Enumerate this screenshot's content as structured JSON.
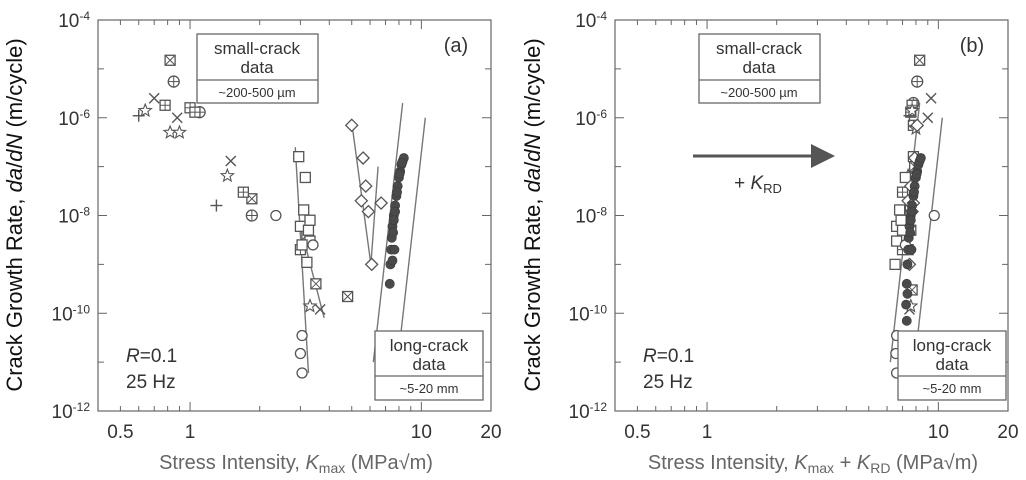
{
  "chart_data": [
    {
      "type": "scatter",
      "panel_label": "(a)",
      "xlabel_text": "Stress Intensity, ",
      "xlabel_K": "K",
      "xlabel_K_sub": "max",
      "xlabel_units": " (MPa√m)",
      "ylabel_text": "Crack Growth Rate, ",
      "ylabel_italic": "da",
      "ylabel_slash": "/",
      "ylabel_italic2": "dN",
      "ylabel_units": " (m/cycle)",
      "x_scale": "log",
      "y_scale": "log",
      "xlim": [
        0.4,
        20
      ],
      "ylim": [
        1e-12,
        0.0001
      ],
      "x_tick_labels": [
        {
          "v": 0.5,
          "text": "0.5"
        },
        {
          "v": 1,
          "text": "1"
        },
        {
          "v": 10,
          "text": "10"
        },
        {
          "v": 20,
          "text": "20"
        }
      ],
      "y_tick_labels": [
        {
          "v": 0.0001,
          "base": "10",
          "exp": "-4"
        },
        {
          "v": 1e-06,
          "base": "10",
          "exp": "-6"
        },
        {
          "v": 1e-08,
          "base": "10",
          "exp": "-8"
        },
        {
          "v": 1e-10,
          "base": "10",
          "exp": "-10"
        },
        {
          "v": 1e-12,
          "base": "10",
          "exp": "-12"
        }
      ],
      "small_crack_box": {
        "line1": "small-crack",
        "line2": "data",
        "range": "~200-500 µm"
      },
      "long_crack_box": {
        "line1": "long-crack",
        "line2": "data",
        "range": "~5-20 mm"
      },
      "conditions": {
        "R_symbol": "R",
        "R_value": "=0.1",
        "freq": "25 Hz"
      },
      "series": [
        {
          "marker": "boxx",
          "points": [
            [
              0.82,
              1.5e-05
            ],
            [
              1.85,
              2.2e-08
            ],
            [
              3.5,
              4e-10
            ],
            [
              4.8,
              2.2e-10
            ],
            [
              3.2,
              4e-09
            ]
          ]
        },
        {
          "marker": "oplus",
          "points": [
            [
              0.85,
              5.5e-06
            ],
            [
              1.1,
              1.3e-06
            ],
            [
              1.85,
              1e-08
            ]
          ]
        },
        {
          "marker": "x",
          "points": [
            [
              0.7,
              2.5e-06
            ],
            [
              0.88,
              1e-06
            ],
            [
              1.5,
              1.3e-07
            ],
            [
              3.65,
              1.2e-10
            ]
          ]
        },
        {
          "marker": "boxplus",
          "points": [
            [
              0.78,
              1.8e-06
            ],
            [
              1.0,
              1.6e-06
            ],
            [
              1.05,
              1.3e-06
            ],
            [
              1.7,
              3e-08
            ],
            [
              3.0,
              2e-09
            ]
          ]
        },
        {
          "marker": "plus",
          "points": [
            [
              0.6,
              1.1e-06
            ],
            [
              1.3,
              1.6e-08
            ]
          ]
        },
        {
          "marker": "star",
          "points": [
            [
              0.64,
              1.4e-06
            ],
            [
              0.82,
              5e-07
            ],
            [
              0.9,
              5e-07
            ],
            [
              1.45,
              6.5e-08
            ],
            [
              3.3,
              1.4e-10
            ]
          ]
        },
        {
          "marker": "square",
          "points": [
            [
              2.95,
              1.6e-07
            ],
            [
              3.15,
              6e-08
            ],
            [
              3.1,
              1.3e-08
            ],
            [
              3.0,
              6e-09
            ],
            [
              3.2,
              1.1e-09
            ],
            [
              3.3,
              3e-09
            ],
            [
              3.25,
              5e-09
            ],
            [
              3.05,
              2.5e-09
            ],
            [
              3.3,
              8e-09
            ]
          ]
        },
        {
          "marker": "circle",
          "points": [
            [
              2.35,
              1e-08
            ],
            [
              3.05,
              3.5e-11
            ],
            [
              3.0,
              1.5e-11
            ],
            [
              3.05,
              6e-12
            ],
            [
              3.4,
              2.5e-09
            ]
          ]
        },
        {
          "marker": "diamond",
          "points": [
            [
              5.0,
              7e-07
            ],
            [
              5.6,
              1.5e-07
            ],
            [
              5.75,
              4e-08
            ],
            [
              5.5,
              2e-08
            ],
            [
              5.9,
              1.2e-08
            ],
            [
              6.1,
              1e-09
            ],
            [
              6.7,
              1.8e-08
            ]
          ]
        },
        {
          "marker": "filled",
          "points": [
            [
              7.3,
              4e-10
            ],
            [
              7.35,
              1e-09
            ],
            [
              7.4,
              2e-09
            ],
            [
              7.45,
              3.5e-09
            ],
            [
              7.5,
              6e-09
            ],
            [
              7.6,
              1e-08
            ],
            [
              7.7,
              1.6e-08
            ],
            [
              7.8,
              2.5e-08
            ],
            [
              7.9,
              4e-08
            ],
            [
              8.0,
              6e-08
            ],
            [
              8.1,
              8e-08
            ],
            [
              8.2,
              1.1e-07
            ],
            [
              8.3,
              1.3e-07
            ],
            [
              8.4,
              1.5e-07
            ],
            [
              7.5,
              1.2e-09
            ],
            [
              7.55,
              4.5e-09
            ],
            [
              7.7,
              1.2e-08
            ],
            [
              7.85,
              3e-08
            ],
            [
              8.05,
              7e-08
            ],
            [
              8.25,
              1.2e-07
            ],
            [
              7.6,
              8e-09
            ],
            [
              7.65,
              2e-09
            ]
          ]
        }
      ],
      "trend_lines": [
        [
          [
            2.85,
            2.5e-07
          ],
          [
            3.25,
            6e-12
          ]
        ],
        [
          [
            3.0,
            6e-09
          ],
          [
            3.8,
            8e-11
          ]
        ],
        [
          [
            5.0,
            8e-07
          ],
          [
            6.05,
            1e-09
          ]
        ],
        [
          [
            6.05,
            1e-09
          ],
          [
            6.5,
            1e-07
          ]
        ],
        [
          [
            6.2,
            1e-11
          ],
          [
            8.3,
            2e-06
          ]
        ],
        [
          [
            7.8,
            6e-12
          ],
          [
            10.4,
            1e-06
          ]
        ]
      ]
    },
    {
      "type": "scatter",
      "panel_label": "(b)",
      "xlabel_text": "Stress Intensity, ",
      "xlabel_K": "K",
      "xlabel_K_sub": "max",
      "xlabel_plus": " + ",
      "xlabel_K2": "K",
      "xlabel_K2_sub": "RD",
      "xlabel_units": " (MPa√m)",
      "ylabel_text": "Crack Growth Rate, ",
      "ylabel_italic": "da",
      "ylabel_slash": "/",
      "ylabel_italic2": "dN",
      "ylabel_units": " (m/cycle)",
      "x_scale": "log",
      "y_scale": "log",
      "xlim": [
        0.4,
        20
      ],
      "ylim": [
        1e-12,
        0.0001
      ],
      "x_tick_labels": [
        {
          "v": 0.5,
          "text": "0.5"
        },
        {
          "v": 1,
          "text": "1"
        },
        {
          "v": 10,
          "text": "10"
        },
        {
          "v": 20,
          "text": "20"
        }
      ],
      "y_tick_labels": [
        {
          "v": 0.0001,
          "base": "10",
          "exp": "-4"
        },
        {
          "v": 1e-06,
          "base": "10",
          "exp": "-6"
        },
        {
          "v": 1e-08,
          "base": "10",
          "exp": "-8"
        },
        {
          "v": 1e-10,
          "base": "10",
          "exp": "-10"
        },
        {
          "v": 1e-12,
          "base": "10",
          "exp": "-12"
        }
      ],
      "small_crack_box": {
        "line1": "small-crack",
        "line2": "data",
        "range": "~200-500 µm"
      },
      "long_crack_box": {
        "line1": "long-crack",
        "line2": "data",
        "range": "~5-20 mm"
      },
      "conditions": {
        "R_symbol": "R",
        "R_value": "=0.1",
        "freq": "25 Hz"
      },
      "arrow_label": {
        "prefix": "+ ",
        "K": "K",
        "sub": "RD"
      },
      "series": [
        {
          "marker": "boxx",
          "points": [
            [
              8.3,
              1.5e-05
            ],
            [
              7.9,
              1e-07
            ],
            [
              7.6,
              5e-09
            ],
            [
              7.4,
              2e-09
            ],
            [
              7.7,
              3e-10
            ]
          ]
        },
        {
          "marker": "oplus",
          "points": [
            [
              8.1,
              5.5e-06
            ],
            [
              7.8,
              2e-06
            ],
            [
              7.2,
              1e-08
            ]
          ]
        },
        {
          "marker": "x",
          "points": [
            [
              9.3,
              2.5e-06
            ],
            [
              9.0,
              1e-06
            ],
            [
              7.6,
              2e-08
            ],
            [
              7.5,
              1.2e-10
            ]
          ]
        },
        {
          "marker": "boxplus",
          "points": [
            [
              7.7,
              1.8e-06
            ],
            [
              7.6,
              1.3e-06
            ],
            [
              7.8,
              7e-07
            ],
            [
              7.0,
              3e-08
            ],
            [
              7.0,
              2e-09
            ]
          ]
        },
        {
          "marker": "plus",
          "points": [
            [
              7.5,
              1.1e-06
            ],
            [
              7.2,
              1.6e-08
            ]
          ]
        },
        {
          "marker": "star",
          "points": [
            [
              7.7,
              1.4e-06
            ],
            [
              8.0,
              6e-07
            ],
            [
              7.4,
              6.5e-08
            ],
            [
              7.6,
              1.4e-10
            ]
          ]
        },
        {
          "marker": "square",
          "points": [
            [
              7.8,
              1.6e-07
            ],
            [
              7.2,
              6e-08
            ],
            [
              6.8,
              1.3e-08
            ],
            [
              6.6,
              6e-09
            ],
            [
              6.5,
              1e-09
            ],
            [
              6.6,
              3e-09
            ],
            [
              7.0,
              5e-09
            ],
            [
              6.9,
              8e-09
            ]
          ]
        },
        {
          "marker": "circle",
          "points": [
            [
              9.6,
              1e-08
            ],
            [
              6.6,
              3.5e-11
            ],
            [
              6.55,
              1.5e-11
            ],
            [
              6.6,
              6e-12
            ],
            [
              7.2,
              2.5e-09
            ]
          ]
        },
        {
          "marker": "diamond",
          "points": [
            [
              8.1,
              7e-07
            ],
            [
              7.9,
              1.5e-07
            ],
            [
              7.6,
              4e-08
            ],
            [
              7.4,
              2e-08
            ],
            [
              7.7,
              1.2e-08
            ],
            [
              7.5,
              1e-09
            ],
            [
              7.8,
              1.8e-08
            ]
          ]
        },
        {
          "marker": "filled",
          "points": [
            [
              7.3,
              7e-11
            ],
            [
              7.25,
              1.5e-10
            ],
            [
              7.3,
              4e-10
            ],
            [
              7.35,
              1e-09
            ],
            [
              7.4,
              2e-09
            ],
            [
              7.45,
              3.5e-09
            ],
            [
              7.5,
              6e-09
            ],
            [
              7.6,
              1e-08
            ],
            [
              7.7,
              1.6e-08
            ],
            [
              7.8,
              2.5e-08
            ],
            [
              7.9,
              4e-08
            ],
            [
              8.0,
              6e-08
            ],
            [
              8.1,
              8e-08
            ],
            [
              8.2,
              1.1e-07
            ],
            [
              8.3,
              1.3e-07
            ],
            [
              8.4,
              1.5e-07
            ],
            [
              7.55,
              4.5e-09
            ],
            [
              7.7,
              1.2e-08
            ],
            [
              7.85,
              3e-08
            ],
            [
              8.05,
              7e-08
            ],
            [
              7.6,
              8e-09
            ],
            [
              7.65,
              2e-09
            ],
            [
              7.35,
              2.5e-10
            ]
          ]
        }
      ],
      "trend_lines": [
        [
          [
            6.2,
            1e-11
          ],
          [
            8.3,
            2e-06
          ]
        ],
        [
          [
            7.8,
            6e-12
          ],
          [
            10.4,
            1e-06
          ]
        ]
      ]
    }
  ]
}
